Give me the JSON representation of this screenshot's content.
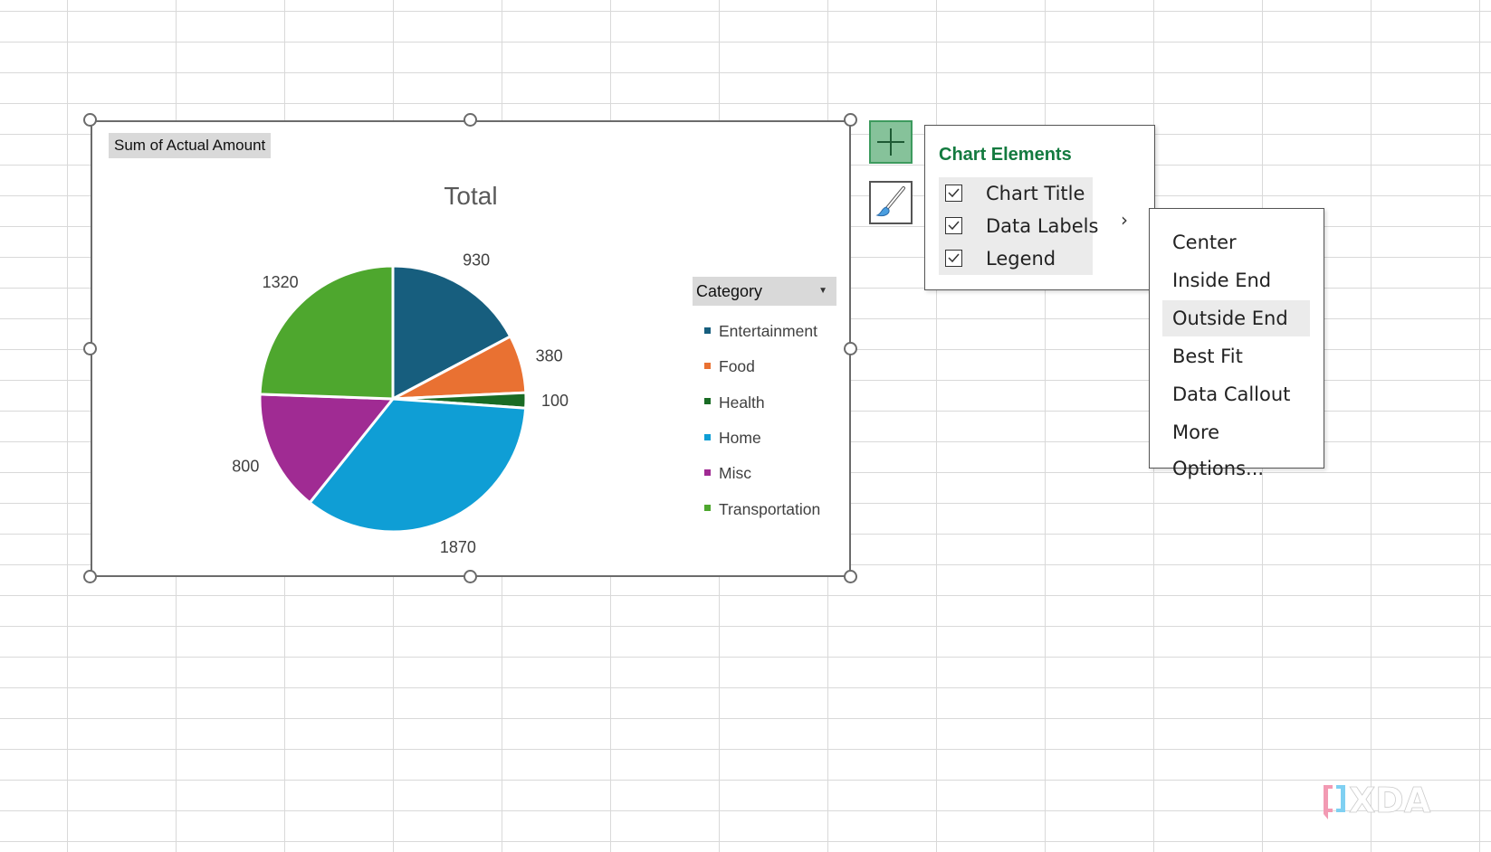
{
  "chart_data": {
    "type": "pie",
    "title": "Total",
    "field_button": "Sum of Actual Amount",
    "legend_title": "Category",
    "legend_placement": "right",
    "categories": [
      "Entertainment",
      "Food",
      "Health",
      "Home",
      "Misc",
      "Transportation"
    ],
    "values": [
      930,
      380,
      100,
      1870,
      800,
      1320
    ],
    "colors": [
      "#175E7E",
      "#E97132",
      "#196B24",
      "#0F9ED5",
      "#A02B93",
      "#4EA72E"
    ],
    "data_labels": [
      "930",
      "380",
      "100",
      "1870",
      "800",
      "1320"
    ]
  },
  "side_buttons": {
    "add_elements_icon": "plus-icon",
    "style_icon": "paintbrush-icon"
  },
  "chart_elements": {
    "title": "Chart Elements",
    "items": [
      {
        "label": "Chart Title",
        "checked": true
      },
      {
        "label": "Data Labels",
        "checked": true
      },
      {
        "label": "Legend",
        "checked": true
      }
    ],
    "submenu_arrow": "›"
  },
  "data_labels_menu": {
    "items": [
      "Center",
      "Inside End",
      "Outside End",
      "Best Fit",
      "Data Callout",
      "More Options..."
    ],
    "highlighted": "Outside End"
  },
  "watermark": "XDA"
}
